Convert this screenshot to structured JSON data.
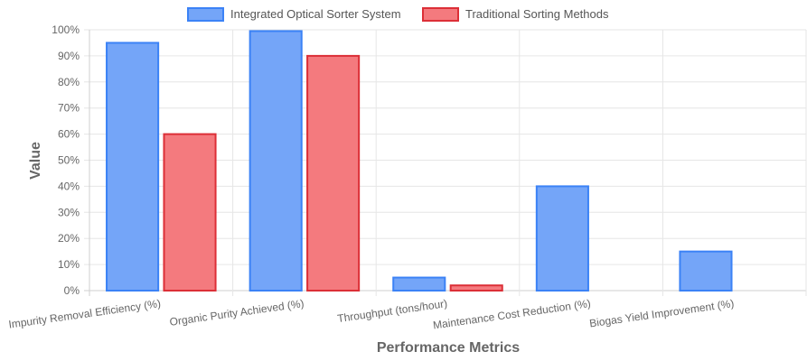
{
  "chart_data": {
    "type": "bar",
    "xlabel": "Performance Metrics",
    "ylabel": "Value",
    "ylim": [
      0,
      100
    ],
    "y_ticks": [
      "0%",
      "10%",
      "20%",
      "30%",
      "40%",
      "50%",
      "60%",
      "70%",
      "80%",
      "90%",
      "100%"
    ],
    "grid": true,
    "legend_position": "top",
    "categories": [
      "Impurity Removal Efficiency (%)",
      "Organic Purity Achieved (%)",
      "Throughput (tons/hour)",
      "Maintenance Cost Reduction (%)",
      "Biogas Yield Improvement (%)"
    ],
    "series": [
      {
        "name": "Integrated Optical Sorter System",
        "values": [
          95,
          99.5,
          5,
          40,
          15
        ],
        "fill": "#74a5f8",
        "stroke": "#3b82f6"
      },
      {
        "name": "Traditional Sorting Methods",
        "values": [
          60,
          90,
          2,
          0,
          0
        ],
        "fill": "#f47a7e",
        "stroke": "#dc2f37"
      }
    ]
  }
}
